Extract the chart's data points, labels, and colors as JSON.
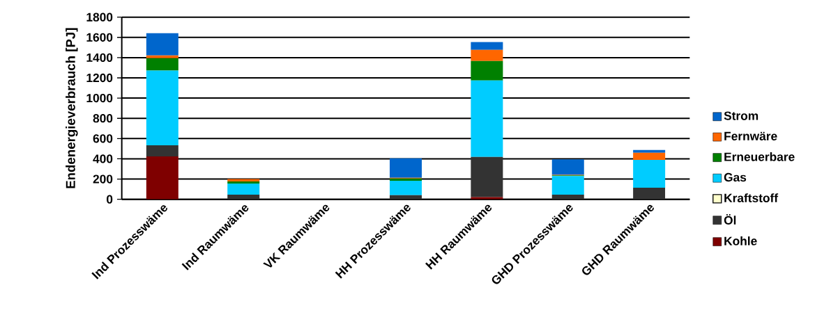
{
  "chart_data": {
    "type": "bar",
    "stacked": true,
    "ylabel": "Endenergieverbrauch [PJ]",
    "categories": [
      "Ind Prozesswäme",
      "Ind Raumwäme",
      "VK Raumwäme",
      "HH Prozesswäme",
      "HH Raumwäme",
      "GHD Prozesswäme",
      "GHD Raumwäme"
    ],
    "series": [
      {
        "name": "Kohle",
        "color": "#7f0000",
        "values": [
          424,
          0,
          0,
          0,
          21,
          0,
          0
        ]
      },
      {
        "name": "Öl",
        "color": "#333333",
        "values": [
          110,
          46,
          0,
          40,
          397,
          46,
          115
        ]
      },
      {
        "name": "Kraftstoff",
        "color": "#ffffcc",
        "values": [
          0,
          0,
          null,
          0,
          0,
          0,
          0
        ]
      },
      {
        "name": "Gas",
        "color": "#00ccff",
        "values": [
          738,
          110,
          0,
          144,
          756,
          184,
          275
        ]
      },
      {
        "name": "Erneuerbare",
        "color": "#008000",
        "values": [
          122,
          20,
          0,
          22,
          192,
          6,
          0
        ]
      },
      {
        "name": "Fernwäre",
        "color": "#ff6600",
        "values": [
          27,
          24,
          0,
          7,
          111,
          5,
          69
        ]
      },
      {
        "name": "Strom",
        "color": "#0066cc",
        "values": [
          221,
          null,
          0,
          191,
          76,
          154,
          29
        ]
      }
    ],
    "ylim": [
      0,
      1800
    ],
    "yticks": [
      0,
      200,
      400,
      600,
      800,
      1000,
      1200,
      1400,
      1600,
      1800
    ],
    "grid": "y",
    "legend": "right"
  }
}
